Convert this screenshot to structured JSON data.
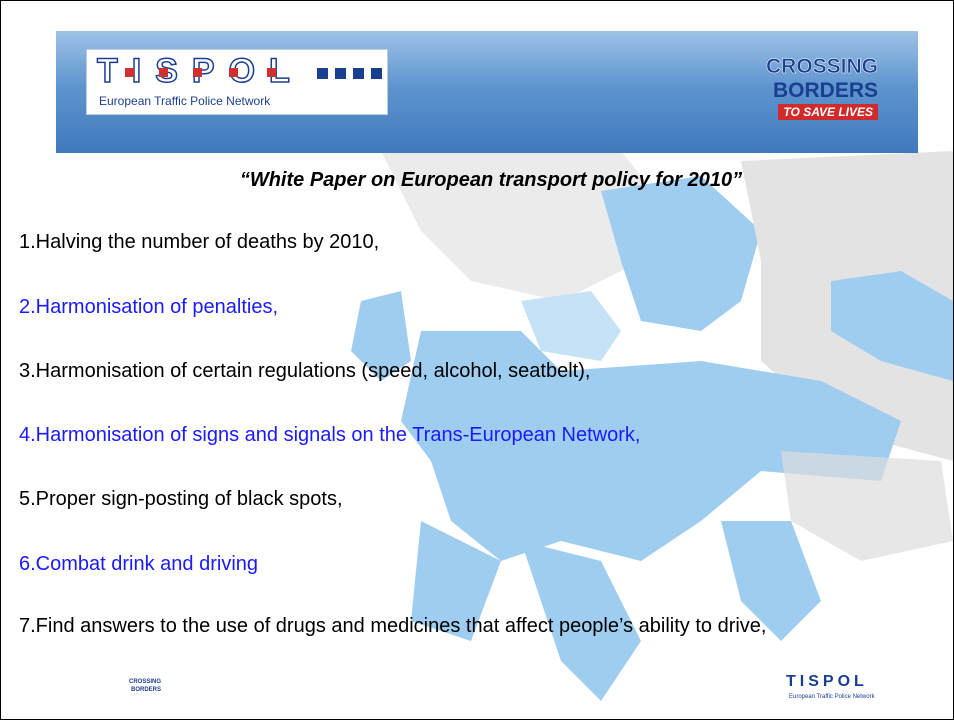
{
  "header": {
    "logo": "TISPOL",
    "network": "European Traffic Police Network",
    "campaign_line1": "CROSSING",
    "campaign_line2": "BORDERS",
    "campaign_line3": "TO SAVE LIVES"
  },
  "title": "“White Paper on European transport policy for 2010”",
  "items": [
    {
      "text": "1.Halving the number of deaths by 2010,",
      "color": "#000000"
    },
    {
      "text": "2.Harmonisation of penalties,",
      "color": "#1a1aff"
    },
    {
      "text": "3.Harmonisation of certain regulations (speed, alcohol, seatbelt),",
      "color": "#000000"
    },
    {
      "text": "4.Harmonisation of signs and signals on the Trans-European Network,",
      "color": "#1a1aff"
    },
    {
      "text": "5.Proper sign-posting of black spots,",
      "color": "#000000"
    },
    {
      "text": "6.Combat drink and driving",
      "color": "#1a1aff"
    },
    {
      "text": "7.Find answers to the use of drugs and medicines that affect people’s ability to drive,",
      "color": "#000000"
    }
  ]
}
